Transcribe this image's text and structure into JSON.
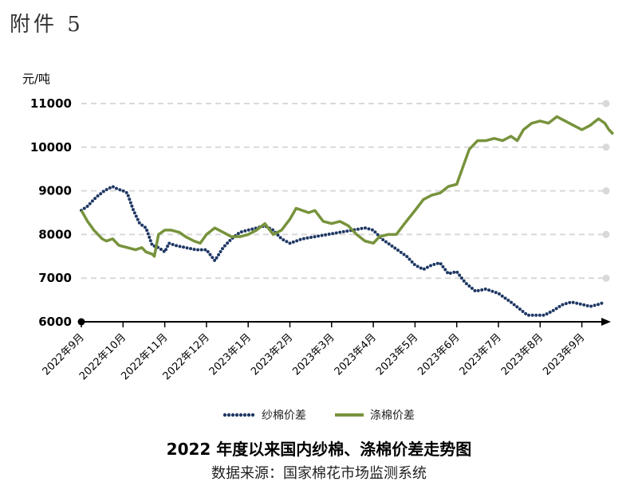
{
  "annex_label": "附件 5",
  "chart_data": {
    "type": "line",
    "title": "2022 年度以来国内纱棉、涤棉价差走势图",
    "source": "数据来源：国家棉花市场监测系统",
    "ylabel": "元/吨",
    "ylim": [
      6000,
      11000
    ],
    "yticks": [
      6000,
      7000,
      8000,
      9000,
      10000,
      11000
    ],
    "ytick_labels": [
      "6000",
      "7000",
      "8000",
      "9000",
      "10000",
      "11000"
    ],
    "grid": true,
    "legend_position": "bottom",
    "categories": [
      "2022年9月",
      "2022年10月",
      "2022年11月",
      "2022年12月",
      "2023年1月",
      "2023年2月",
      "2023年3月",
      "2023年4月",
      "2023年5月",
      "2023年6月",
      "2023年7月",
      "2023年8月",
      "2023年9月"
    ],
    "series": [
      {
        "name": "纱棉价差",
        "style": "dotted",
        "color": "#1f3864",
        "points": [
          [
            0,
            8550
          ],
          [
            0.15,
            8650
          ],
          [
            0.35,
            8850
          ],
          [
            0.55,
            9000
          ],
          [
            0.75,
            9100
          ],
          [
            0.85,
            9050
          ],
          [
            1.0,
            9000
          ],
          [
            1.1,
            8950
          ],
          [
            1.25,
            8550
          ],
          [
            1.4,
            8250
          ],
          [
            1.55,
            8150
          ],
          [
            1.7,
            7750
          ],
          [
            1.85,
            7700
          ],
          [
            2.0,
            7600
          ],
          [
            2.1,
            7800
          ],
          [
            2.25,
            7750
          ],
          [
            2.5,
            7700
          ],
          [
            2.75,
            7650
          ],
          [
            3.0,
            7650
          ],
          [
            3.2,
            7400
          ],
          [
            3.4,
            7700
          ],
          [
            3.6,
            7900
          ],
          [
            3.8,
            8050
          ],
          [
            4.0,
            8100
          ],
          [
            4.2,
            8150
          ],
          [
            4.4,
            8200
          ],
          [
            4.6,
            8100
          ],
          [
            4.8,
            7900
          ],
          [
            5.0,
            7800
          ],
          [
            5.3,
            7900
          ],
          [
            5.6,
            7950
          ],
          [
            5.9,
            8000
          ],
          [
            6.2,
            8050
          ],
          [
            6.5,
            8100
          ],
          [
            6.8,
            8150
          ],
          [
            7.0,
            8100
          ],
          [
            7.2,
            7900
          ],
          [
            7.5,
            7700
          ],
          [
            7.8,
            7500
          ],
          [
            8.0,
            7300
          ],
          [
            8.2,
            7200
          ],
          [
            8.4,
            7300
          ],
          [
            8.6,
            7350
          ],
          [
            8.8,
            7100
          ],
          [
            9.0,
            7150
          ],
          [
            9.2,
            6900
          ],
          [
            9.45,
            6700
          ],
          [
            9.7,
            6750
          ],
          [
            10.0,
            6650
          ],
          [
            10.3,
            6450
          ],
          [
            10.5,
            6300
          ],
          [
            10.7,
            6150
          ],
          [
            10.9,
            6150
          ],
          [
            11.1,
            6150
          ],
          [
            11.3,
            6250
          ],
          [
            11.55,
            6400
          ],
          [
            11.75,
            6450
          ],
          [
            12.0,
            6400
          ],
          [
            12.2,
            6350
          ],
          [
            12.4,
            6400
          ],
          [
            12.55,
            6450
          ]
        ]
      },
      {
        "name": "涤棉价差",
        "style": "solid",
        "color": "#77933c",
        "points": [
          [
            0,
            8550
          ],
          [
            0.15,
            8300
          ],
          [
            0.3,
            8100
          ],
          [
            0.5,
            7900
          ],
          [
            0.6,
            7850
          ],
          [
            0.75,
            7900
          ],
          [
            0.9,
            7750
          ],
          [
            1.1,
            7700
          ],
          [
            1.3,
            7650
          ],
          [
            1.45,
            7700
          ],
          [
            1.55,
            7600
          ],
          [
            1.7,
            7550
          ],
          [
            1.75,
            7500
          ],
          [
            1.85,
            8000
          ],
          [
            2.0,
            8100
          ],
          [
            2.15,
            8100
          ],
          [
            2.35,
            8050
          ],
          [
            2.5,
            7950
          ],
          [
            2.7,
            7850
          ],
          [
            2.85,
            7800
          ],
          [
            3.0,
            8000
          ],
          [
            3.2,
            8150
          ],
          [
            3.4,
            8050
          ],
          [
            3.6,
            7950
          ],
          [
            3.8,
            7950
          ],
          [
            4.0,
            8000
          ],
          [
            4.2,
            8100
          ],
          [
            4.4,
            8250
          ],
          [
            4.6,
            8000
          ],
          [
            4.8,
            8100
          ],
          [
            5.0,
            8350
          ],
          [
            5.15,
            8600
          ],
          [
            5.3,
            8550
          ],
          [
            5.45,
            8500
          ],
          [
            5.6,
            8550
          ],
          [
            5.8,
            8300
          ],
          [
            6.0,
            8250
          ],
          [
            6.2,
            8300
          ],
          [
            6.4,
            8200
          ],
          [
            6.6,
            8000
          ],
          [
            6.8,
            7850
          ],
          [
            7.0,
            7800
          ],
          [
            7.15,
            7950
          ],
          [
            7.35,
            8000
          ],
          [
            7.55,
            8000
          ],
          [
            7.75,
            8250
          ],
          [
            8.0,
            8550
          ],
          [
            8.2,
            8800
          ],
          [
            8.4,
            8900
          ],
          [
            8.6,
            8950
          ],
          [
            8.8,
            9100
          ],
          [
            9.0,
            9150
          ],
          [
            9.15,
            9550
          ],
          [
            9.3,
            9950
          ],
          [
            9.5,
            10150
          ],
          [
            9.7,
            10150
          ],
          [
            9.9,
            10200
          ],
          [
            10.1,
            10150
          ],
          [
            10.3,
            10250
          ],
          [
            10.45,
            10150
          ],
          [
            10.6,
            10400
          ],
          [
            10.8,
            10550
          ],
          [
            11.0,
            10600
          ],
          [
            11.2,
            10550
          ],
          [
            11.4,
            10700
          ],
          [
            11.6,
            10600
          ],
          [
            11.8,
            10500
          ],
          [
            12.0,
            10400
          ],
          [
            12.2,
            10500
          ],
          [
            12.4,
            10650
          ],
          [
            12.55,
            10550
          ],
          [
            12.65,
            10400
          ],
          [
            12.75,
            10300
          ]
        ]
      }
    ]
  }
}
